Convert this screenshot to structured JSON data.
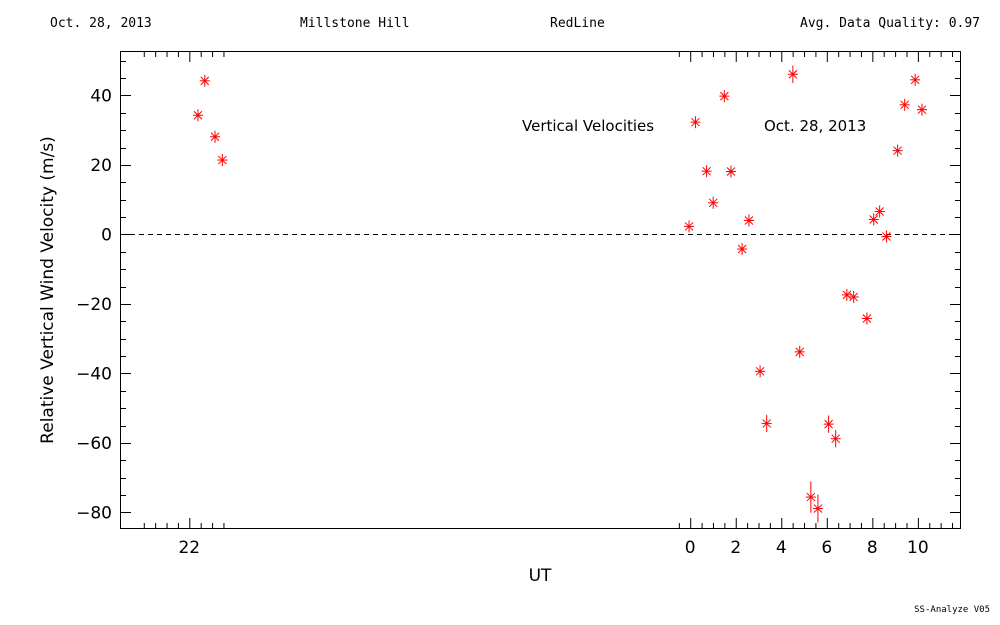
{
  "header": {
    "date": "Oct. 28, 2013",
    "site": "Millstone Hill",
    "filter": "RedLine",
    "quality": "Avg. Data Quality: 0.97"
  },
  "footer": {
    "software": "SS-Analyze V05"
  },
  "chart_data": {
    "type": "scatter",
    "xlabel": "UT",
    "ylabel": "Relative Vertical Wind Velocity (m/s)",
    "annotation_title": "Vertical Velocities",
    "annotation_date": "Oct. 28, 2013",
    "xlim": [
      -25.0,
      11.85
    ],
    "ylim": [
      -84.5,
      52.5
    ],
    "x_ticks": [
      -22,
      0,
      2,
      4,
      6,
      8,
      10
    ],
    "x_tick_labels": [
      "22",
      "0",
      "2",
      "4",
      "6",
      "8",
      "10"
    ],
    "y_ticks": [
      -80,
      -60,
      -40,
      -20,
      0,
      20,
      40
    ],
    "y_tick_labels": [
      "−80",
      "−60",
      "−40",
      "−20",
      "0",
      "20",
      "40"
    ],
    "zero_line": true,
    "marker": "asterisk",
    "color": "#ff0000",
    "points": [
      {
        "x": -21.62,
        "y": 34.3,
        "err": 0.5
      },
      {
        "x": -21.32,
        "y": 44.2,
        "err": 0.5
      },
      {
        "x": -20.87,
        "y": 28.1,
        "err": 0.5
      },
      {
        "x": -20.55,
        "y": 21.4,
        "err": 0.5
      },
      {
        "x": -0.05,
        "y": 2.3,
        "err": 0.5
      },
      {
        "x": 0.23,
        "y": 32.3,
        "err": 0.5
      },
      {
        "x": 0.72,
        "y": 18.2,
        "err": 0.5
      },
      {
        "x": 1.01,
        "y": 9.1,
        "err": 0.5
      },
      {
        "x": 1.5,
        "y": 39.8,
        "err": 0.5
      },
      {
        "x": 1.79,
        "y": 18.1,
        "err": 0.5
      },
      {
        "x": 2.28,
        "y": -4.2,
        "err": 0.5
      },
      {
        "x": 2.58,
        "y": 4.0,
        "err": 0.5
      },
      {
        "x": 3.07,
        "y": -39.4,
        "err": 0.5
      },
      {
        "x": 3.36,
        "y": -54.4,
        "err": 2.5
      },
      {
        "x": 4.51,
        "y": 46.1,
        "err": 2.5
      },
      {
        "x": 4.81,
        "y": -33.8,
        "err": 1.5
      },
      {
        "x": 5.3,
        "y": -75.6,
        "err": 4.5
      },
      {
        "x": 5.61,
        "y": -78.9,
        "err": 4.0
      },
      {
        "x": 6.08,
        "y": -54.6,
        "err": 2.5
      },
      {
        "x": 6.39,
        "y": -58.8,
        "err": 2.5
      },
      {
        "x": 6.88,
        "y": -17.4,
        "err": 0.5
      },
      {
        "x": 7.18,
        "y": -18.0,
        "err": 0.5
      },
      {
        "x": 7.76,
        "y": -24.2,
        "err": 0.5
      },
      {
        "x": 8.06,
        "y": 4.3,
        "err": 0.5
      },
      {
        "x": 8.32,
        "y": 6.6,
        "err": 0.5
      },
      {
        "x": 8.62,
        "y": -0.6,
        "err": 0.5
      },
      {
        "x": 9.11,
        "y": 24.1,
        "err": 0.5
      },
      {
        "x": 9.42,
        "y": 37.3,
        "err": 0.5
      },
      {
        "x": 9.88,
        "y": 44.5,
        "err": 0.5
      },
      {
        "x": 10.18,
        "y": 35.9,
        "err": 0.5
      }
    ]
  }
}
